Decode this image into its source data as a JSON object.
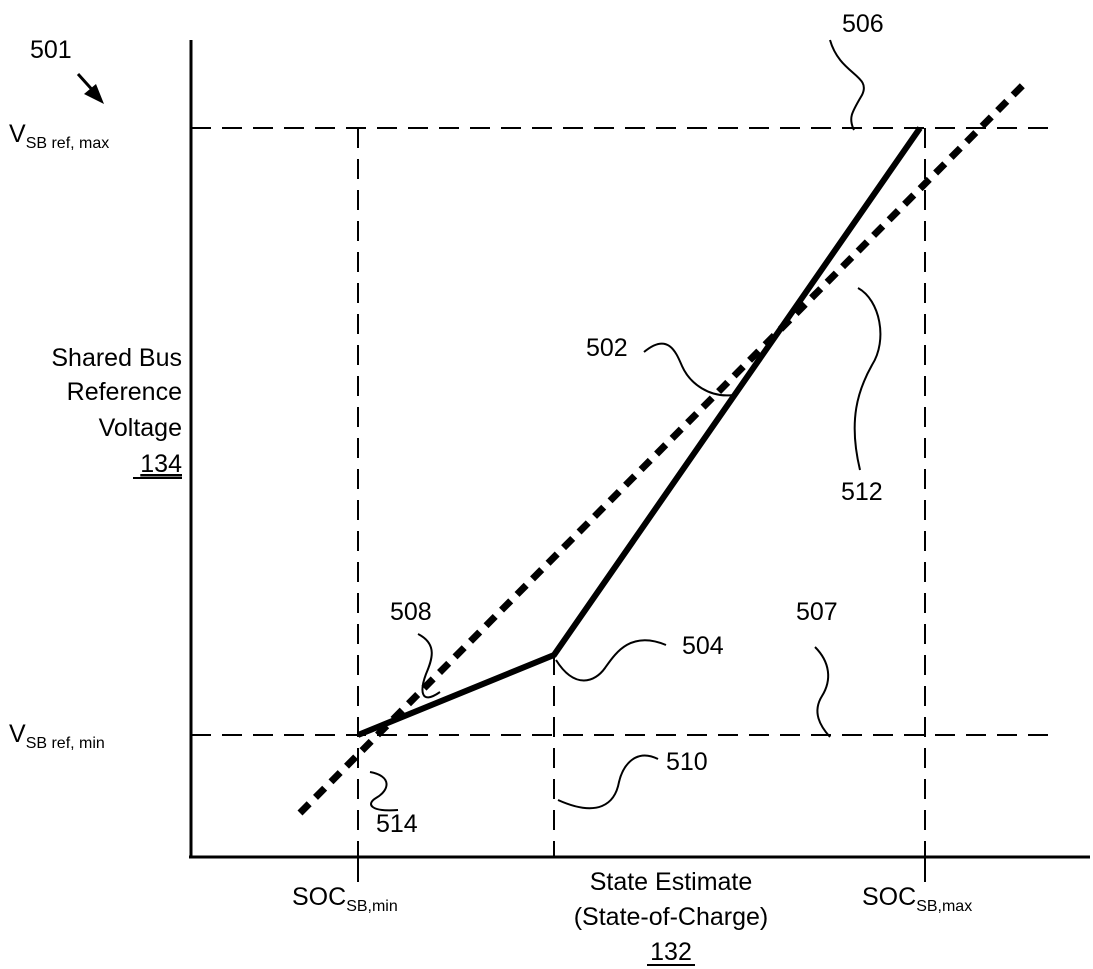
{
  "figure": {
    "ref": "501",
    "y_axis": {
      "label_lines": [
        "Shared Bus",
        "Reference",
        "Voltage"
      ],
      "label_ref": "134"
    },
    "x_axis": {
      "label_lines": [
        "State Estimate",
        "(State-of-Charge)"
      ],
      "label_ref": "132"
    },
    "tick_labels": {
      "v_max": {
        "main": "V",
        "sub": "SB ref, max"
      },
      "v_min": {
        "main": "V",
        "sub": "SB ref, min"
      },
      "soc_min": {
        "main": "SOC",
        "sub": "SB,min"
      },
      "soc_max": {
        "main": "SOC",
        "sub": "SB,max"
      }
    },
    "callouts": {
      "c502": "502",
      "c504": "504",
      "c506": "506",
      "c507": "507",
      "c508": "508",
      "c510": "510",
      "c512": "512",
      "c514": "514"
    },
    "colors": {
      "ink": "#000000",
      "background": "#ffffff"
    }
  }
}
